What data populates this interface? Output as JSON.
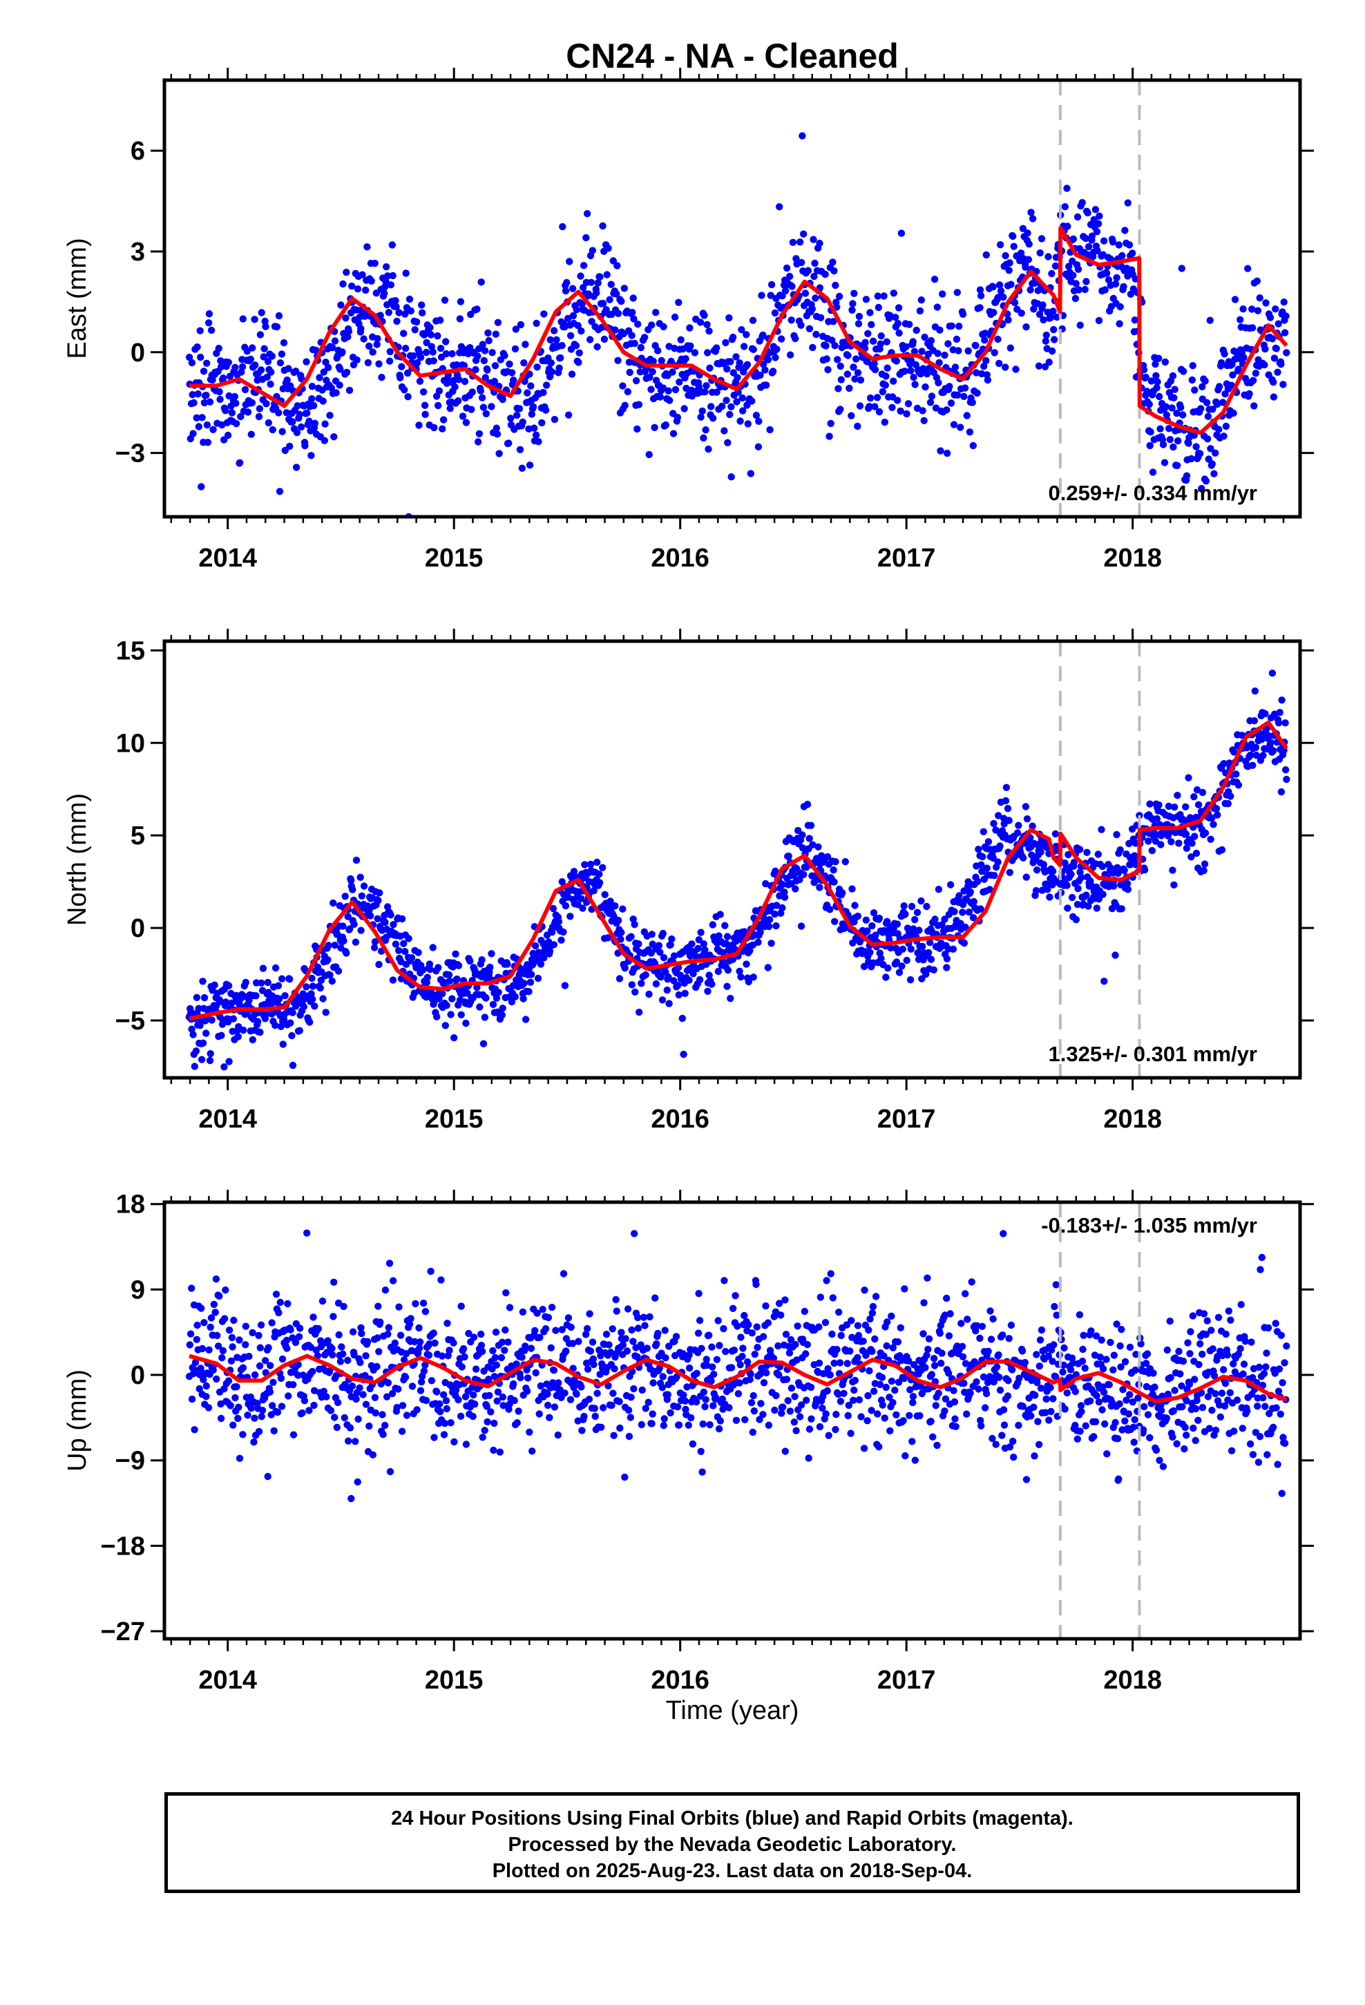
{
  "title": "CN24  - NA - Cleaned",
  "xlabel": "Time (year)",
  "footer": {
    "line1": "24 Hour Positions Using Final Orbits (blue) and Rapid Orbits (magenta).",
    "line2": "Processed by the Nevada Geodetic Laboratory.",
    "line3": "Plotted on 2025-Aug-23. Last data on 2018-Sep-04."
  },
  "colors": {
    "points": "#0000ff",
    "model": "#ff0000",
    "offset_lines": "#bbbbbb",
    "frame": "#000000"
  },
  "chart_data": [
    {
      "type": "scatter",
      "ylabel": "East (mm)",
      "xlim": [
        2013.72,
        2018.74
      ],
      "ylim": [
        -4.9,
        8.1
      ],
      "yticks": [
        6,
        3,
        0,
        -3
      ],
      "yticks_text": [
        "6",
        "3",
        "0",
        "−3"
      ],
      "xticks": [
        2014,
        2015,
        2016,
        2017,
        2018
      ],
      "xticks_text": [
        "2014",
        "2015",
        "2016",
        "2017",
        "2018"
      ],
      "rate_text": "0.259+/- 0.334 mm/yr",
      "rate_position": "bottom-right",
      "offset_dates": [
        2017.68,
        2018.03
      ],
      "model": {
        "name": "model",
        "x": [
          2013.83,
          2013.95,
          2014.05,
          2014.15,
          2014.25,
          2014.35,
          2014.45,
          2014.55,
          2014.65,
          2014.75,
          2014.85,
          2014.95,
          2015.05,
          2015.15,
          2015.25,
          2015.35,
          2015.45,
          2015.55,
          2015.65,
          2015.75,
          2015.85,
          2015.95,
          2016.05,
          2016.15,
          2016.25,
          2016.35,
          2016.45,
          2016.55,
          2016.65,
          2016.75,
          2016.85,
          2016.95,
          2017.05,
          2017.15,
          2017.25,
          2017.35,
          2017.45,
          2017.55,
          2017.65,
          2017.679,
          2017.681,
          2017.75,
          2017.85,
          2017.95,
          2018.029,
          2018.031,
          2018.1,
          2018.2,
          2018.3,
          2018.4,
          2018.5,
          2018.6,
          2018.68
        ],
        "y": [
          -1.0,
          -1.0,
          -0.8,
          -1.2,
          -1.6,
          -0.8,
          0.6,
          1.6,
          1.1,
          0.0,
          -0.7,
          -0.6,
          -0.5,
          -1.0,
          -1.3,
          -0.2,
          1.2,
          1.8,
          1.0,
          0.0,
          -0.4,
          -0.4,
          -0.4,
          -0.8,
          -1.1,
          -0.3,
          1.1,
          2.1,
          1.6,
          0.3,
          -0.2,
          -0.1,
          -0.1,
          -0.5,
          -0.8,
          0.0,
          1.5,
          2.4,
          1.7,
          1.2,
          3.7,
          2.9,
          2.6,
          2.7,
          2.8,
          -1.6,
          -1.9,
          -2.2,
          -2.4,
          -1.8,
          -0.4,
          0.8,
          0.2
        ]
      },
      "points": {
        "base": [
          -1.2,
          -1.0,
          -0.9,
          -0.8,
          -1.0,
          -1.3,
          -1.6,
          -0.6,
          0.7,
          1.5,
          1.2,
          0.2,
          -0.6,
          -0.7,
          -0.5,
          -0.6,
          -1.1,
          -1.3,
          -0.3,
          1.0,
          1.8,
          1.2,
          0.1,
          -0.4,
          -0.5,
          -0.4,
          -0.6,
          -1.0,
          -0.9,
          0.2,
          1.4,
          2.0,
          1.3,
          0.3,
          -0.2,
          -0.2,
          -0.1,
          -0.3,
          -0.7,
          -0.6,
          0.4,
          1.8,
          2.4,
          1.3,
          3.3,
          2.8,
          2.5,
          2.8,
          -1.6,
          -2.0,
          -2.3,
          -2.2,
          -1.2,
          0.1,
          0.7,
          0.1
        ],
        "spread": 1.35,
        "count": 1650
      }
    },
    {
      "type": "scatter",
      "ylabel": "North (mm)",
      "xlim": [
        2013.72,
        2018.74
      ],
      "ylim": [
        -8.1,
        15.5
      ],
      "yticks": [
        15,
        10,
        5,
        0,
        -5
      ],
      "yticks_text": [
        "15",
        "10",
        "5",
        "0",
        "−5"
      ],
      "xticks": [
        2014,
        2015,
        2016,
        2017,
        2018
      ],
      "xticks_text": [
        "2014",
        "2015",
        "2016",
        "2017",
        "2018"
      ],
      "rate_text": "1.325+/- 0.301 mm/yr",
      "rate_position": "bottom-right",
      "offset_dates": [
        2017.68,
        2018.03
      ],
      "model": {
        "name": "model",
        "x": [
          2013.83,
          2013.95,
          2014.05,
          2014.15,
          2014.25,
          2014.35,
          2014.45,
          2014.55,
          2014.65,
          2014.75,
          2014.85,
          2014.95,
          2015.05,
          2015.15,
          2015.25,
          2015.35,
          2015.45,
          2015.55,
          2015.65,
          2015.75,
          2015.85,
          2015.95,
          2016.05,
          2016.15,
          2016.25,
          2016.35,
          2016.45,
          2016.55,
          2016.65,
          2016.75,
          2016.85,
          2016.95,
          2017.05,
          2017.15,
          2017.25,
          2017.35,
          2017.45,
          2017.55,
          2017.63,
          2017.65,
          2017.679,
          2017.681,
          2017.75,
          2017.85,
          2017.95,
          2018.029,
          2018.031,
          2018.1,
          2018.2,
          2018.3,
          2018.4,
          2018.5,
          2018.6,
          2018.68
        ],
        "y": [
          -4.9,
          -4.6,
          -4.4,
          -4.4,
          -4.3,
          -2.6,
          -0.1,
          1.4,
          -0.2,
          -2.3,
          -3.2,
          -3.3,
          -3.0,
          -3.0,
          -2.6,
          -0.6,
          2.0,
          2.6,
          0.6,
          -1.4,
          -2.2,
          -2.0,
          -1.8,
          -1.7,
          -1.4,
          0.6,
          3.2,
          3.9,
          2.3,
          0.1,
          -0.9,
          -0.8,
          -0.6,
          -0.5,
          -0.5,
          0.9,
          3.8,
          5.3,
          4.8,
          3.8,
          3.4,
          5.1,
          3.8,
          2.7,
          2.6,
          3.1,
          5.3,
          5.4,
          5.4,
          5.8,
          7.6,
          10.3,
          11.1,
          9.7
        ]
      },
      "points": {
        "base": [
          -5.0,
          -4.7,
          -4.5,
          -4.4,
          -4.4,
          -4.3,
          -3.8,
          -1.6,
          0.8,
          1.3,
          -0.4,
          -2.2,
          -3.1,
          -3.3,
          -3.1,
          -3.0,
          -2.9,
          -2.5,
          -0.6,
          1.8,
          2.6,
          0.8,
          -1.2,
          -2.1,
          -2.1,
          -1.9,
          -1.7,
          -1.6,
          -1.2,
          0.7,
          3.2,
          3.9,
          2.5,
          0.3,
          -0.8,
          -0.8,
          -0.7,
          -0.6,
          -0.5,
          0.7,
          3.6,
          5.2,
          4.6,
          3.6,
          3.0,
          2.6,
          2.6,
          3.0,
          5.3,
          5.4,
          5.4,
          5.9,
          7.8,
          10.2,
          11.0,
          9.8
        ],
        "spread": 1.3,
        "count": 1650
      }
    },
    {
      "type": "scatter",
      "ylabel": "Up (mm)",
      "xlim": [
        2013.72,
        2018.74
      ],
      "ylim": [
        -27.8,
        18.2
      ],
      "yticks": [
        18,
        9,
        0,
        -9,
        -18,
        -27
      ],
      "yticks_text": [
        "18",
        "9",
        "0",
        "−9",
        "−18",
        "−27"
      ],
      "xticks": [
        2014,
        2015,
        2016,
        2017,
        2018
      ],
      "xticks_text": [
        "2014",
        "2015",
        "2016",
        "2017",
        "2018"
      ],
      "rate_text": "-0.183+/- 1.035 mm/yr",
      "rate_position": "top-right",
      "offset_dates": [
        2017.68,
        2018.03
      ],
      "model": {
        "name": "model",
        "x": [
          2013.83,
          2013.95,
          2014.05,
          2014.15,
          2014.25,
          2014.35,
          2014.45,
          2014.55,
          2014.65,
          2014.75,
          2014.85,
          2014.95,
          2015.05,
          2015.15,
          2015.25,
          2015.35,
          2015.45,
          2015.55,
          2015.65,
          2015.75,
          2015.85,
          2015.95,
          2016.05,
          2016.15,
          2016.25,
          2016.35,
          2016.45,
          2016.55,
          2016.65,
          2016.75,
          2016.85,
          2016.95,
          2017.05,
          2017.15,
          2017.25,
          2017.35,
          2017.45,
          2017.55,
          2017.65,
          2017.679,
          2017.681,
          2017.75,
          2017.85,
          2017.95,
          2018.029,
          2018.031,
          2018.1,
          2018.2,
          2018.3,
          2018.4,
          2018.5,
          2018.6,
          2018.68
        ],
        "y": [
          2.0,
          1.2,
          -0.6,
          -0.6,
          1.0,
          2.0,
          1.0,
          -0.4,
          -0.8,
          0.8,
          1.8,
          0.8,
          -0.6,
          -1.2,
          0.2,
          1.6,
          1.2,
          -0.2,
          -1.0,
          0.4,
          1.6,
          0.9,
          -0.6,
          -1.3,
          -0.2,
          1.4,
          1.3,
          0.0,
          -1.0,
          0.3,
          1.6,
          1.0,
          -0.6,
          -1.3,
          -0.3,
          1.4,
          1.4,
          0.3,
          -0.8,
          -0.5,
          -1.6,
          -0.4,
          0.2,
          -0.8,
          -1.9,
          -1.9,
          -2.8,
          -2.4,
          -1.4,
          -0.2,
          -0.6,
          -2.0,
          -2.6
        ]
      },
      "points": {
        "base": [
          2.0,
          1.4,
          0.0,
          -0.8,
          0.2,
          1.6,
          1.8,
          0.4,
          -0.8,
          -0.2,
          1.3,
          1.6,
          0.1,
          -1.1,
          -0.7,
          1.0,
          1.6,
          0.4,
          -0.9,
          -0.4,
          1.2,
          1.3,
          -0.1,
          -1.2,
          -0.9,
          0.8,
          1.6,
          0.6,
          -0.7,
          -0.5,
          1.1,
          1.4,
          0.1,
          -1.1,
          -1.0,
          0.8,
          1.5,
          0.7,
          -0.6,
          -1.2,
          -0.6,
          0.1,
          -0.3,
          -1.4,
          -2.6,
          -2.7,
          -2.0,
          -0.8,
          -0.3,
          -0.9,
          -2.1,
          -2.6
        ],
        "spread": 5.0,
        "count": 1650
      }
    }
  ]
}
